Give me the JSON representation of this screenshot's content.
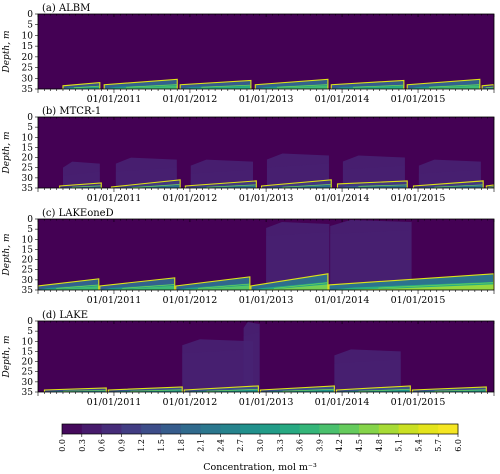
{
  "colors": {
    "background": "#440154",
    "cmap": [
      "#440154",
      "#482374",
      "#404688",
      "#33638d",
      "#287d8e",
      "#1f968b",
      "#29af7f",
      "#55c667",
      "#95d840",
      "#dce319",
      "#fde725"
    ],
    "isoline": "#dde318",
    "isoline_inner": "#73d055",
    "plume": "#4a4b8e",
    "plume_light": "#55569a"
  },
  "chart_data": [
    {
      "type": "heatmap",
      "title": "(a) ALBM",
      "ylabel": "Depth, m",
      "ylim": [
        0,
        35
      ],
      "yticks": [
        0,
        5,
        10,
        15,
        20,
        25,
        30,
        35
      ],
      "x_range": [
        "2010-01-01",
        "2016-01-01"
      ],
      "xticks": [
        "01/01/2011",
        "01/01/2012",
        "01/01/2013",
        "01/01/2014",
        "01/01/2015"
      ],
      "seasons": [
        {
          "start": "2010-05-01",
          "end": "2010-10-25",
          "top_start": 33.5,
          "top_end": 32.0,
          "peak": 3.3
        },
        {
          "start": "2010-11-15",
          "end": "2011-11-01",
          "top_start": 33.0,
          "top_end": 30.5,
          "peak": 3.9
        },
        {
          "start": "2011-11-15",
          "end": "2012-10-20",
          "top_start": 33.0,
          "top_end": 31.0,
          "peak": 3.6
        },
        {
          "start": "2012-11-10",
          "end": "2013-10-25",
          "top_start": 33.0,
          "top_end": 30.5,
          "peak": 3.9
        },
        {
          "start": "2013-11-10",
          "end": "2014-10-25",
          "top_start": 33.0,
          "top_end": 31.0,
          "peak": 3.6
        },
        {
          "start": "2014-11-10",
          "end": "2015-10-25",
          "top_start": 33.0,
          "top_end": 30.5,
          "peak": 3.9
        },
        {
          "start": "2015-11-05",
          "end": "2015-12-31",
          "top_start": 33.5,
          "top_end": 33.0,
          "peak": 2.4
        }
      ],
      "plumes": []
    },
    {
      "type": "heatmap",
      "title": "(b) MTCR-1",
      "ylabel": "Depth, m",
      "ylim": [
        0,
        35
      ],
      "yticks": [
        0,
        5,
        10,
        15,
        20,
        25,
        30,
        35
      ],
      "x_range": [
        "2010-01-01",
        "2016-01-01"
      ],
      "xticks": [
        "01/01/2011",
        "01/01/2012",
        "01/01/2013",
        "01/01/2014",
        "01/01/2015"
      ],
      "seasons": [
        {
          "start": "2010-04-15",
          "end": "2010-11-01",
          "top_start": 34.0,
          "top_end": 32.5,
          "peak": 1.8
        },
        {
          "start": "2010-12-20",
          "end": "2011-11-15",
          "top_start": 34.5,
          "top_end": 31.0,
          "peak": 2.1
        },
        {
          "start": "2011-12-10",
          "end": "2012-11-15",
          "top_start": 34.0,
          "top_end": 31.5,
          "peak": 2.1
        },
        {
          "start": "2012-12-10",
          "end": "2013-11-10",
          "top_start": 34.0,
          "top_end": 31.0,
          "peak": 2.1
        },
        {
          "start": "2013-12-10",
          "end": "2014-11-10",
          "top_start": 33.0,
          "top_end": 31.5,
          "peak": 2.1
        },
        {
          "start": "2014-12-10",
          "end": "2015-11-10",
          "top_start": 34.0,
          "top_end": 31.5,
          "peak": 2.1
        },
        {
          "start": "2015-11-25",
          "end": "2015-12-31",
          "top_start": 34.0,
          "top_end": 33.5,
          "peak": 1.5
        }
      ],
      "plumes": [
        {
          "start": "2010-05-01",
          "end": "2010-10-25",
          "top": 22,
          "level": 0.6
        },
        {
          "start": "2011-01-10",
          "end": "2011-10-30",
          "top": 20,
          "level": 0.6
        },
        {
          "start": "2012-01-05",
          "end": "2012-10-30",
          "top": 21,
          "level": 0.6
        },
        {
          "start": "2013-01-05",
          "end": "2013-10-30",
          "top": 18,
          "level": 0.6
        },
        {
          "start": "2014-01-05",
          "end": "2014-10-30",
          "top": 19,
          "level": 0.6
        },
        {
          "start": "2015-01-05",
          "end": "2015-10-30",
          "top": 21,
          "level": 0.6
        }
      ]
    },
    {
      "type": "heatmap",
      "title": "(c) LAKEoneD",
      "ylabel": "Depth, m",
      "ylim": [
        0,
        35
      ],
      "yticks": [
        0,
        5,
        10,
        15,
        20,
        25,
        30,
        35
      ],
      "x_range": [
        "2010-01-01",
        "2016-01-01"
      ],
      "xticks": [
        "01/01/2011",
        "01/01/2012",
        "01/01/2013",
        "01/01/2014",
        "01/01/2015"
      ],
      "seasons": [
        {
          "start": "2010-01-01",
          "end": "2010-10-20",
          "top_start": 33.0,
          "top_end": 29.5,
          "peak": 3.9
        },
        {
          "start": "2010-10-25",
          "end": "2011-10-20",
          "top_start": 33.0,
          "top_end": 29.0,
          "peak": 3.9
        },
        {
          "start": "2011-10-25",
          "end": "2012-10-15",
          "top_start": 33.0,
          "top_end": 28.5,
          "peak": 4.2
        },
        {
          "start": "2012-10-20",
          "end": "2013-10-25",
          "top_start": 33.0,
          "top_end": 27.0,
          "peak": 4.5
        },
        {
          "start": "2013-10-30",
          "end": "2015-12-31",
          "top_start": 32.5,
          "top_end": 27.0,
          "peak": 4.8
        }
      ],
      "plumes": [
        {
          "start": "2013-01-01",
          "end": "2013-11-01",
          "top": 1.5,
          "level": 0.6
        },
        {
          "start": "2013-11-05",
          "end": "2014-12-01",
          "top": 0.5,
          "level": 0.6
        }
      ]
    },
    {
      "type": "heatmap",
      "title": "(d) LAKE",
      "ylabel": "Depth, m",
      "ylim": [
        0,
        35
      ],
      "yticks": [
        0,
        5,
        10,
        15,
        20,
        25,
        30,
        35
      ],
      "x_range": [
        "2010-01-01",
        "2016-01-01"
      ],
      "xticks": [
        "01/01/2011",
        "01/01/2012",
        "01/01/2013",
        "01/01/2014",
        "01/01/2015"
      ],
      "seasons": [
        {
          "start": "2010-02-01",
          "end": "2010-11-25",
          "top_start": 34.0,
          "top_end": 33.0,
          "peak": 2.7
        },
        {
          "start": "2010-12-05",
          "end": "2011-11-25",
          "top_start": 34.0,
          "top_end": 32.5,
          "peak": 3.0
        },
        {
          "start": "2011-12-05",
          "end": "2012-11-25",
          "top_start": 34.0,
          "top_end": 32.0,
          "peak": 3.0
        },
        {
          "start": "2012-12-05",
          "end": "2013-11-25",
          "top_start": 34.0,
          "top_end": 32.0,
          "peak": 3.0
        },
        {
          "start": "2013-12-05",
          "end": "2014-11-25",
          "top_start": 34.0,
          "top_end": 32.0,
          "peak": 3.0
        },
        {
          "start": "2014-12-05",
          "end": "2015-11-25",
          "top_start": 34.0,
          "top_end": 32.5,
          "peak": 3.0
        }
      ],
      "plumes": [
        {
          "start": "2011-11-25",
          "end": "2012-10-30",
          "top": 9,
          "level": 0.6
        },
        {
          "start": "2012-09-15",
          "end": "2012-12-01",
          "top": 0.5,
          "level": 0.6
        },
        {
          "start": "2013-11-25",
          "end": "2014-10-10",
          "top": 14,
          "level": 0.6
        }
      ]
    }
  ],
  "colorbar": {
    "ticks": [
      "0.0",
      "0.3",
      "0.6",
      "0.9",
      "1.2",
      "1.5",
      "1.8",
      "2.1",
      "2.4",
      "2.7",
      "3.0",
      "3.3",
      "3.6",
      "3.9",
      "4.2",
      "4.5",
      "4.8",
      "5.1",
      "5.4",
      "5.7",
      "6.0"
    ],
    "range": [
      0.0,
      6.0
    ],
    "label": "Concentration, mol m⁻³"
  }
}
